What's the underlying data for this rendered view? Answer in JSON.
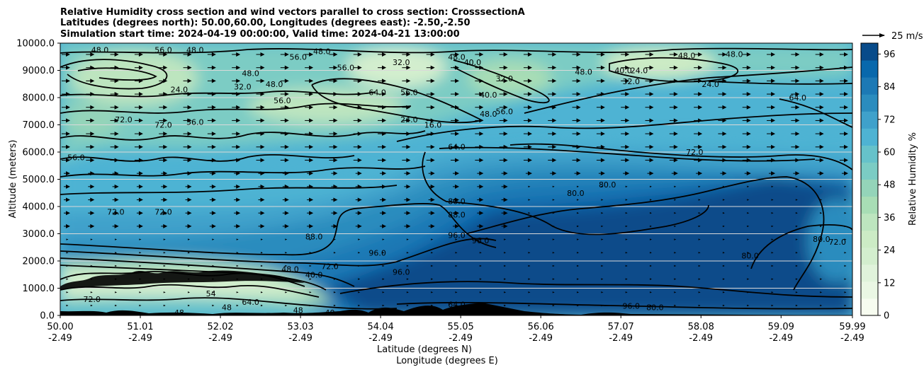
{
  "chart_data": {
    "type": "contour",
    "title_lines": [
      "Relative Humidity cross section and wind vectors parallel to cross section: CrosssectionA",
      "Latitudes (degrees north): 50.00,60.00, Longitudes (degrees east): -2.50,-2.50",
      "Simulation start time: 2024-04-19 00:00:00, Valid time: 2024-04-21 13:00:00"
    ],
    "xlabel": "Latitude (degrees N)",
    "xlabel2": "Longitude (degrees E)",
    "ylabel": "Altitude (meters)",
    "xlim": [
      50.0,
      59.99
    ],
    "ylim": [
      0,
      10000
    ],
    "x_ticks": [
      {
        "lat": "50.00",
        "lon": "-2.49",
        "value": 50.0
      },
      {
        "lat": "51.01",
        "lon": "-2.49",
        "value": 51.01
      },
      {
        "lat": "52.02",
        "lon": "-2.49",
        "value": 52.02
      },
      {
        "lat": "53.03",
        "lon": "-2.49",
        "value": 53.03
      },
      {
        "lat": "54.04",
        "lon": "-2.49",
        "value": 54.04
      },
      {
        "lat": "55.05",
        "lon": "-2.49",
        "value": 55.05
      },
      {
        "lat": "56.06",
        "lon": "-2.49",
        "value": 56.06
      },
      {
        "lat": "57.07",
        "lon": "-2.49",
        "value": 57.07
      },
      {
        "lat": "58.08",
        "lon": "-2.49",
        "value": 58.08
      },
      {
        "lat": "59.09",
        "lon": "-2.49",
        "value": 59.09
      },
      {
        "lat": "59.99",
        "lon": "-2.49",
        "value": 59.99
      }
    ],
    "y_ticks": [
      {
        "label": "0.0",
        "value": 0
      },
      {
        "label": "1000.0",
        "value": 1000
      },
      {
        "label": "2000.0",
        "value": 2000
      },
      {
        "label": "3000.0",
        "value": 3000
      },
      {
        "label": "4000.0",
        "value": 4000
      },
      {
        "label": "5000.0",
        "value": 5000
      },
      {
        "label": "6000.0",
        "value": 6000
      },
      {
        "label": "7000.0",
        "value": 7000
      },
      {
        "label": "8000.0",
        "value": 8000
      },
      {
        "label": "9000.0",
        "value": 9000
      },
      {
        "label": "10000.0",
        "value": 10000
      }
    ],
    "grid": "horizontal",
    "colorbar": {
      "label": "Relative Humidity %",
      "range": [
        0,
        100
      ],
      "tick_labels": [
        "0",
        "12",
        "24",
        "36",
        "48",
        "60",
        "72",
        "84",
        "96"
      ],
      "tick_values": [
        0,
        12,
        24,
        36,
        48,
        60,
        72,
        84,
        96
      ],
      "colors": [
        "#f7fcf0",
        "#eaf7e4",
        "#e0f3db",
        "#d3eece",
        "#ccebc5",
        "#bde5bf",
        "#a8ddb5",
        "#94d4b9",
        "#7bccc4",
        "#66c2ca",
        "#4eb3d3",
        "#3fa1cb",
        "#2b8cbe",
        "#1c79b5",
        "#0868ac",
        "#084b8a"
      ]
    },
    "wind_key": {
      "label": "25 m/s",
      "speed": 25
    },
    "contour_labels": [
      {
        "text": "48.0",
        "lat": 50.5,
        "alt": 9750
      },
      {
        "text": "56.0",
        "lat": 51.3,
        "alt": 9750
      },
      {
        "text": "48.0",
        "lat": 51.7,
        "alt": 9750
      },
      {
        "text": "56.0",
        "lat": 53.0,
        "alt": 9500
      },
      {
        "text": "48.0",
        "lat": 53.3,
        "alt": 9700
      },
      {
        "text": "56.0",
        "lat": 53.6,
        "alt": 9100
      },
      {
        "text": "48.0",
        "lat": 55.0,
        "alt": 9500
      },
      {
        "text": "40.0",
        "lat": 55.2,
        "alt": 9300
      },
      {
        "text": "32.0",
        "lat": 54.3,
        "alt": 9300
      },
      {
        "text": "48.0",
        "lat": 52.4,
        "alt": 8900
      },
      {
        "text": "48.0",
        "lat": 52.7,
        "alt": 8500
      },
      {
        "text": "32.0",
        "lat": 52.3,
        "alt": 8400
      },
      {
        "text": "24.0",
        "lat": 51.5,
        "alt": 8300
      },
      {
        "text": "64.0",
        "lat": 54.0,
        "alt": 8200
      },
      {
        "text": "56.0",
        "lat": 54.4,
        "alt": 8200
      },
      {
        "text": "32.0",
        "lat": 55.6,
        "alt": 8700
      },
      {
        "text": "40.0",
        "lat": 55.4,
        "alt": 8100
      },
      {
        "text": "48.0",
        "lat": 56.6,
        "alt": 8950
      },
      {
        "text": "56.0",
        "lat": 52.8,
        "alt": 7900
      },
      {
        "text": "56.0",
        "lat": 55.6,
        "alt": 7500
      },
      {
        "text": "48.0",
        "lat": 55.4,
        "alt": 7400
      },
      {
        "text": "56.0",
        "lat": 51.7,
        "alt": 7100
      },
      {
        "text": "72.0",
        "lat": 50.8,
        "alt": 7200
      },
      {
        "text": "72.0",
        "lat": 51.3,
        "alt": 7000
      },
      {
        "text": "24.0",
        "lat": 54.4,
        "alt": 7200
      },
      {
        "text": "16.0",
        "lat": 54.7,
        "alt": 7000
      },
      {
        "text": "64.0",
        "lat": 55.0,
        "alt": 6200
      },
      {
        "text": "56.0",
        "lat": 50.2,
        "alt": 5800
      },
      {
        "text": "40.0",
        "lat": 57.1,
        "alt": 9000
      },
      {
        "text": "32.0",
        "lat": 57.2,
        "alt": 8600
      },
      {
        "text": "24.0",
        "lat": 57.3,
        "alt": 9000
      },
      {
        "text": "48.0",
        "lat": 57.9,
        "alt": 9550
      },
      {
        "text": "48.0",
        "lat": 58.5,
        "alt": 9600
      },
      {
        "text": "24.0",
        "lat": 58.2,
        "alt": 8500
      },
      {
        "text": "64.0",
        "lat": 59.3,
        "alt": 8000
      },
      {
        "text": "72.0",
        "lat": 58.0,
        "alt": 6000
      },
      {
        "text": "80.0",
        "lat": 56.9,
        "alt": 4800
      },
      {
        "text": "80.0",
        "lat": 56.5,
        "alt": 4500
      },
      {
        "text": "80.0",
        "lat": 55.0,
        "alt": 4200
      },
      {
        "text": "88.0",
        "lat": 55.0,
        "alt": 3700
      },
      {
        "text": "96.0",
        "lat": 55.0,
        "alt": 2950
      },
      {
        "text": "96.0",
        "lat": 55.3,
        "alt": 2750
      },
      {
        "text": "96.0",
        "lat": 54.0,
        "alt": 2300
      },
      {
        "text": "96.0",
        "lat": 54.3,
        "alt": 1600
      },
      {
        "text": "72.0",
        "lat": 50.7,
        "alt": 3800
      },
      {
        "text": "72.0",
        "lat": 51.3,
        "alt": 3800
      },
      {
        "text": "88.0",
        "lat": 53.2,
        "alt": 2900
      },
      {
        "text": "72.0",
        "lat": 53.4,
        "alt": 1800
      },
      {
        "text": "80.0",
        "lat": 58.7,
        "alt": 2200
      },
      {
        "text": "80.0",
        "lat": 59.6,
        "alt": 2800
      },
      {
        "text": "72.0",
        "lat": 59.8,
        "alt": 2700
      },
      {
        "text": "72.0",
        "lat": 50.4,
        "alt": 600
      },
      {
        "text": "48",
        "lat": 51.5,
        "alt": 100
      },
      {
        "text": "48",
        "lat": 52.1,
        "alt": 300
      },
      {
        "text": "54",
        "lat": 51.9,
        "alt": 800
      },
      {
        "text": "64.0",
        "lat": 52.4,
        "alt": 500
      },
      {
        "text": "48",
        "lat": 53.0,
        "alt": 200
      },
      {
        "text": "40",
        "lat": 53.4,
        "alt": 100
      },
      {
        "text": "64.0",
        "lat": 55.0,
        "alt": 400
      },
      {
        "text": "96.0",
        "lat": 57.2,
        "alt": 350
      },
      {
        "text": "80.0",
        "lat": 57.5,
        "alt": 300
      },
      {
        "text": "48.0",
        "lat": 52.9,
        "alt": 1700
      },
      {
        "text": "40.0",
        "lat": 53.2,
        "alt": 1500
      }
    ]
  }
}
